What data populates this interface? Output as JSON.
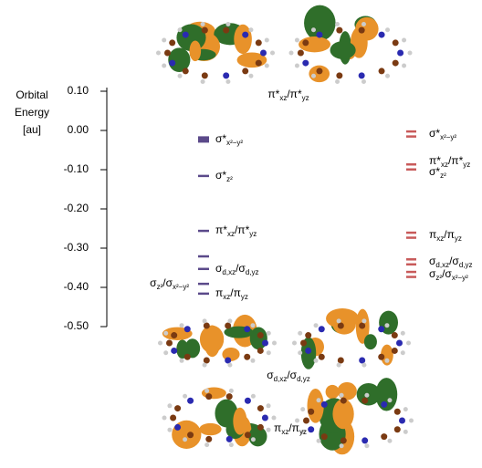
{
  "chart_data": {
    "type": "levels",
    "ylabel": [
      "Orbital",
      "Energy",
      "[au]"
    ],
    "ylim": [
      -0.5,
      0.1
    ],
    "yticks": [
      {
        "value": 0.1,
        "label": "0.10"
      },
      {
        "value": 0,
        "label": "0.00"
      },
      {
        "value": -0.1,
        "label": "-0.10"
      },
      {
        "value": -0.2,
        "label": "-0.20"
      },
      {
        "value": -0.3,
        "label": "-0.30"
      },
      {
        "value": -0.4,
        "label": "-0.40"
      },
      {
        "value": -0.5,
        "label": "-0.50"
      }
    ],
    "columns": [
      {
        "color": "#5b4a8a",
        "levels": [
          -0.023,
          -0.116,
          -0.256,
          -0.321,
          -0.353,
          -0.391,
          -0.416
        ],
        "labels": [
          [
            [
              "σ*",
              "x²−y²"
            ]
          ],
          [
            [
              "σ*",
              "z²"
            ]
          ],
          [
            [
              "π*",
              "xz",
              "/π*",
              "yz"
            ]
          ],
          null,
          [
            [
              "σ",
              "d,xz",
              "/σ",
              "d,yz"
            ]
          ],
          null,
          [
            [
              "π",
              "xz",
              "/π",
              "yz"
            ]
          ]
        ],
        "side_labels": [
          null,
          null,
          null,
          null,
          null,
          [
            [
              "σ",
              "z²",
              "/σ",
              "x²−y²"
            ]
          ],
          null
        ]
      },
      {
        "color": "#c85a5a",
        "levels": [
          -0.009,
          -0.093,
          -0.267,
          -0.335,
          -0.367
        ],
        "labels": [
          [
            [
              "σ*",
              "x²−y²"
            ]
          ],
          [
            [
              "π*",
              "xz",
              "/π*",
              "yz"
            ],
            [
              "σ*",
              "z²"
            ]
          ],
          [
            [
              "π",
              "xz",
              "/π",
              "yz"
            ]
          ],
          [
            [
              "σ",
              "d,xz",
              "/σ",
              "d,yz"
            ]
          ],
          [
            [
              "σ",
              "z²",
              "/σ",
              "x²−y²"
            ]
          ]
        ],
        "side_labels": [
          null,
          null,
          null,
          null,
          null
        ]
      }
    ],
    "captions": [
      [
        "π*",
        "xz",
        "/π*",
        "yz"
      ],
      [
        "σ",
        "d,xz",
        "/σ",
        "d,yz"
      ],
      [
        "π",
        "xz",
        "/π",
        "yz"
      ]
    ]
  }
}
